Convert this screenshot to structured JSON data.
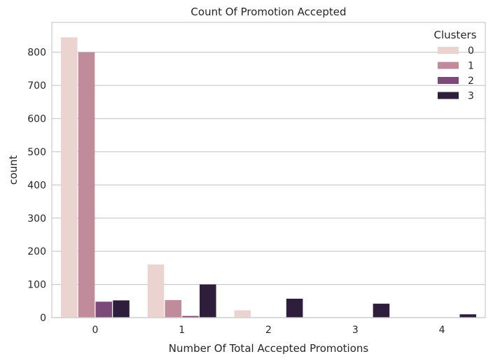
{
  "chart_data": {
    "type": "bar",
    "title": "Count Of Promotion Accepted",
    "xlabel": "Number Of Total Accepted Promotions",
    "ylabel": "count",
    "categories": [
      "0",
      "1",
      "2",
      "3",
      "4"
    ],
    "series": [
      {
        "name": "0",
        "color": "#ebd3cf",
        "values": [
          845,
          160,
          22,
          0,
          0
        ]
      },
      {
        "name": "1",
        "color": "#c08c9c",
        "values": [
          800,
          53,
          0,
          0,
          0
        ]
      },
      {
        "name": "2",
        "color": "#7b4a79",
        "values": [
          48,
          5,
          0,
          0,
          0
        ]
      },
      {
        "name": "3",
        "color": "#2e1e3c",
        "values": [
          52,
          100,
          57,
          42,
          10
        ]
      }
    ],
    "ylim": [
      0,
      890
    ],
    "yticks": [
      0,
      100,
      200,
      300,
      400,
      500,
      600,
      700,
      800
    ],
    "grid": true,
    "legend": {
      "title": "Clusters",
      "placement": "top-right"
    }
  }
}
